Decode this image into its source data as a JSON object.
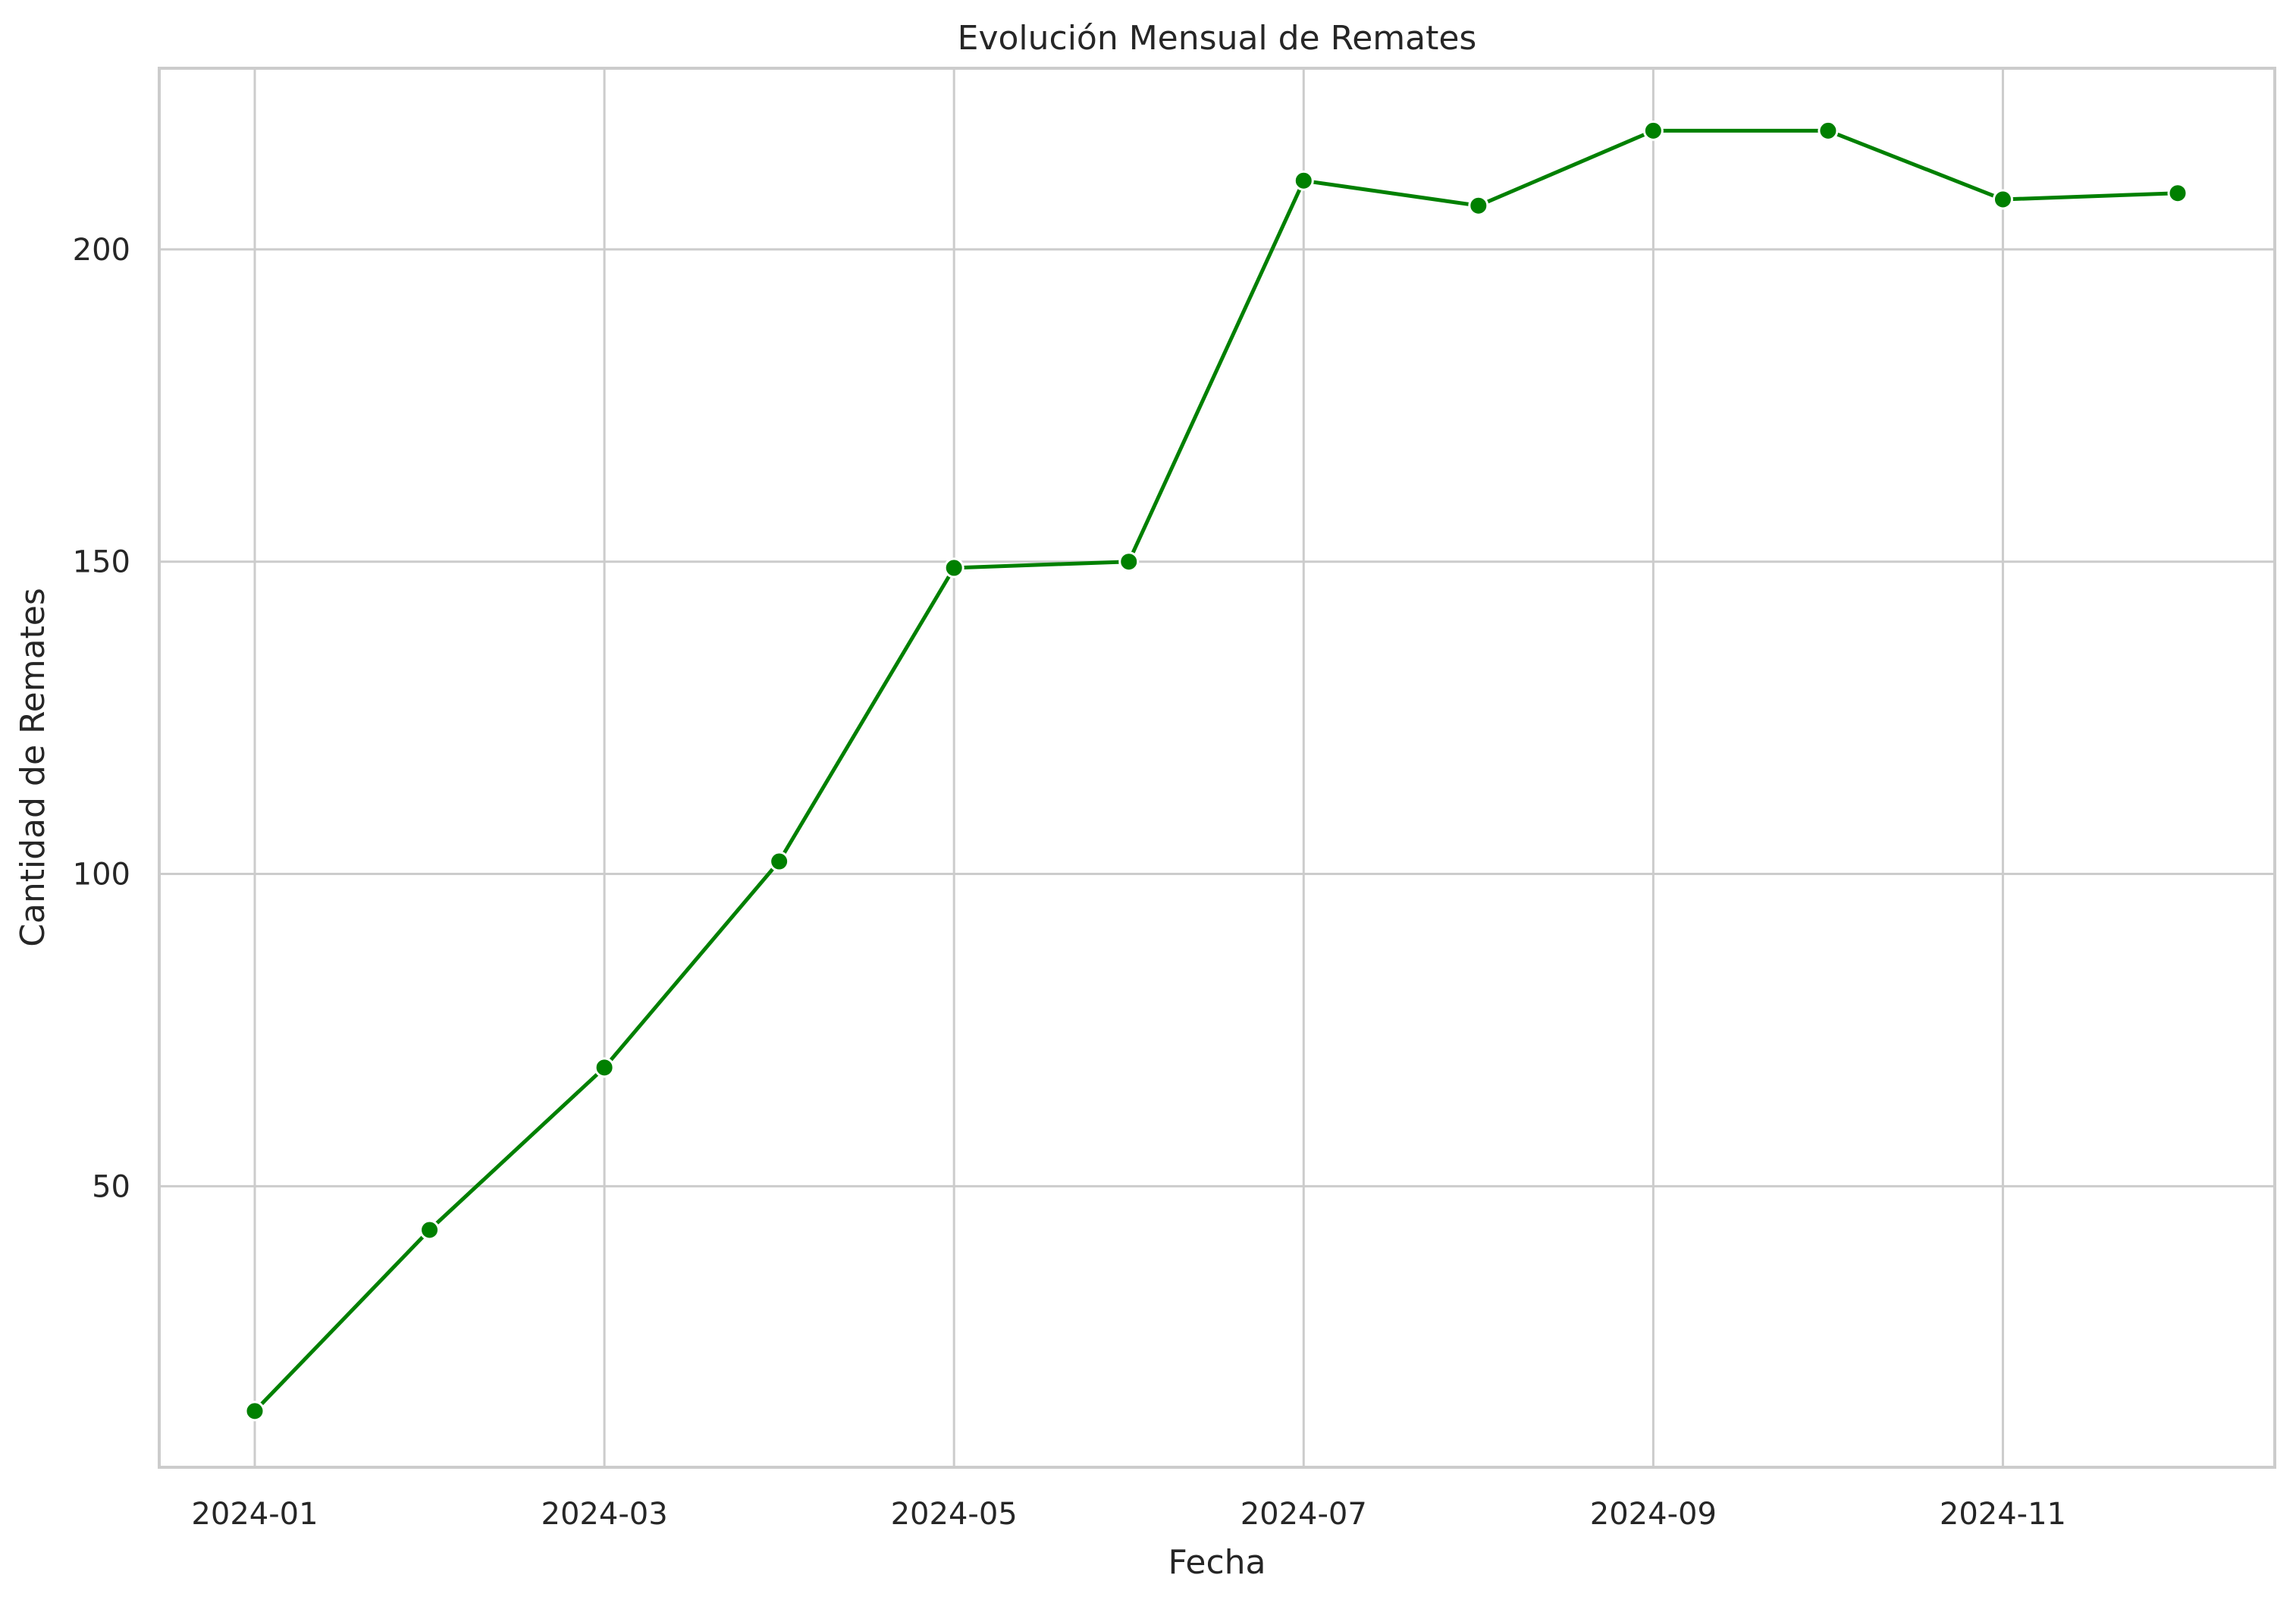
{
  "chart_data": {
    "type": "line",
    "title": "Evolución Mensual de Remates",
    "xlabel": "Fecha",
    "ylabel": "Cantidad de Remates",
    "x": [
      "2024-01",
      "2024-02",
      "2024-03",
      "2024-04",
      "2024-05",
      "2024-06",
      "2024-07",
      "2024-08",
      "2024-09",
      "2024-10",
      "2024-11",
      "2024-12"
    ],
    "series": [
      {
        "values": [
          14,
          43,
          69,
          102,
          149,
          150,
          211,
          207,
          219,
          219,
          208,
          209
        ]
      }
    ],
    "x_ticks": [
      "2024-01",
      "2024-03",
      "2024-05",
      "2024-07",
      "2024-09",
      "2024-11"
    ],
    "y_ticks": [
      50,
      100,
      150,
      200
    ],
    "ylim": [
      5,
      229
    ],
    "grid": true,
    "colors": {
      "line": "#008000",
      "grid": "#cccccc",
      "text": "#262626",
      "marker_edge": "#ffffff"
    }
  }
}
